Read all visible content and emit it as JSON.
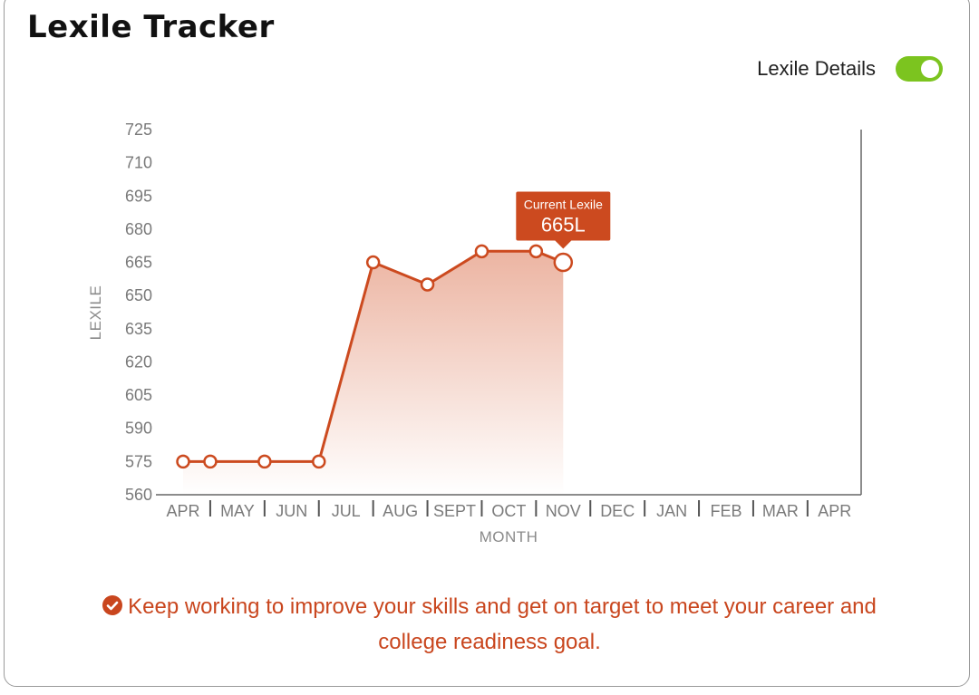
{
  "header": {
    "title": "Lexile Tracker"
  },
  "toggle": {
    "label": "Lexile Details",
    "on": true
  },
  "chart_data": {
    "type": "line",
    "title": "",
    "xlabel": "MONTH",
    "ylabel": "LEXILE",
    "categories": [
      "APR",
      "MAY",
      "JUN",
      "JUL",
      "AUG",
      "SEPT",
      "OCT",
      "NOV",
      "DEC",
      "JAN",
      "FEB",
      "MAR",
      "APR"
    ],
    "yticks": [
      560,
      575,
      590,
      605,
      620,
      635,
      650,
      665,
      680,
      695,
      710,
      725
    ],
    "ylim": [
      560,
      725
    ],
    "points": [
      {
        "x": 0.0,
        "y": 575
      },
      {
        "x": 0.5,
        "y": 575
      },
      {
        "x": 1.5,
        "y": 575
      },
      {
        "x": 2.5,
        "y": 575
      },
      {
        "x": 3.5,
        "y": 665
      },
      {
        "x": 4.5,
        "y": 655
      },
      {
        "x": 5.5,
        "y": 670
      },
      {
        "x": 6.5,
        "y": 670
      },
      {
        "x": 7.0,
        "y": 665
      }
    ],
    "series_color": "#cc4a1f",
    "area_fill": true,
    "current": {
      "label": "Current Lexile",
      "value": "665L"
    }
  },
  "message": {
    "text": "Keep working to improve your skills and get on target to meet your career and college readiness goal."
  }
}
